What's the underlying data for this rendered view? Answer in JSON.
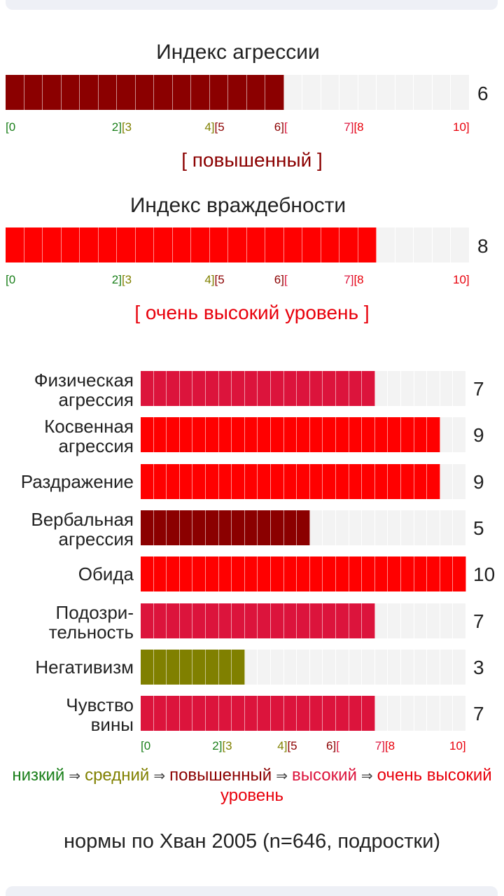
{
  "chart_data": [
    {
      "type": "bar",
      "title": "Индекс агрессии",
      "value": 6,
      "max": 10,
      "color": "#8b0000",
      "level_label": "[ повышенный ]",
      "level_color": "#8b0000"
    },
    {
      "type": "bar",
      "title": "Индекс враждебности",
      "value": 8,
      "max": 10,
      "color": "#ff0000",
      "level_label": "[ очень высокий уровень ]",
      "level_color": "#e8000b"
    },
    {
      "type": "bar",
      "orientation": "horizontal",
      "xlim": [
        0,
        10
      ],
      "categories": [
        {
          "label": "Физическая агрессия",
          "lines": [
            "Физическая",
            "агрессия"
          ],
          "value": 7,
          "color": "#dc143c"
        },
        {
          "label": "Косвенная агрессия",
          "lines": [
            "Косвенная",
            "агрессия"
          ],
          "value": 9,
          "color": "#ff0000"
        },
        {
          "label": "Раздражение",
          "lines": [
            "Раздражение"
          ],
          "value": 9,
          "color": "#ff0000"
        },
        {
          "label": "Вербальная агрессия",
          "lines": [
            "Вербальная",
            "агрессия"
          ],
          "value": 5,
          "color": "#8b0000"
        },
        {
          "label": "Обида",
          "lines": [
            "Обида"
          ],
          "value": 10,
          "color": "#ff0000"
        },
        {
          "label": "Подозри-тельность",
          "lines": [
            "Подозри-",
            "тельность"
          ],
          "value": 7,
          "color": "#dc143c"
        },
        {
          "label": "Негативизм",
          "lines": [
            "Негативизм"
          ],
          "value": 3,
          "color": "#808000"
        },
        {
          "label": "Чувство вины",
          "lines": [
            "Чувство",
            "вины"
          ],
          "value": 7,
          "color": "#dc143c"
        }
      ]
    }
  ],
  "scale_ticks": [
    {
      "text": "[0",
      "value": 0,
      "color": "#1a7f1a"
    },
    {
      "text": "2][3",
      "value": 2.5,
      "color_a": "#1a7f1a",
      "a": "2]",
      "color_b": "#808000",
      "b": "[3"
    },
    {
      "text": "4][5",
      "value": 4.5,
      "color_a": "#808000",
      "a": "4]",
      "color_b": "#8b0000",
      "b": "[5"
    },
    {
      "text": "6][",
      "value": 6,
      "color_a": "#8b0000",
      "a": "6]",
      "color_b": "#dc143c",
      "b": "["
    },
    {
      "text": "7][8",
      "value": 7.5,
      "color_a": "#dc143c",
      "a": "7]",
      "color_b": "#e8000b",
      "b": "[8"
    },
    {
      "text": "10]",
      "value": 10,
      "color": "#e8000b"
    }
  ],
  "legend": {
    "items": [
      {
        "text": "низкий",
        "color": "#1a7f1a"
      },
      {
        "text": "средний",
        "color": "#808000"
      },
      {
        "text": "повышенный",
        "color": "#8b0000"
      },
      {
        "text": "высокий",
        "color": "#dc143c"
      },
      {
        "text": "очень высокий уровень",
        "color": "#e8000b"
      }
    ],
    "arrow": "⇒"
  },
  "norms_text": "нормы по Хван 2005 (n=646, подростки)",
  "track_color": "#f3f3f3"
}
